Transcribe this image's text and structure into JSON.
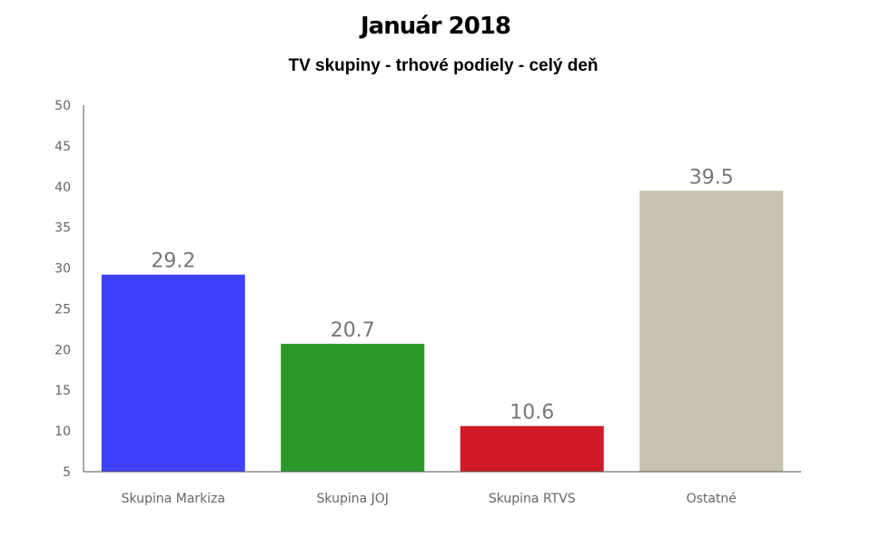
{
  "chart_data": {
    "type": "bar",
    "title": "Január 2018",
    "subtitle": "TV skupiny - trhové podiely - celý deň",
    "categories": [
      "Skupina Markiza",
      "Skupina JOJ",
      "Skupina RTVS",
      "Ostatné"
    ],
    "values": [
      29.2,
      20.7,
      10.6,
      39.5
    ],
    "value_labels": [
      "29.2",
      "20.7",
      "10.6",
      "39.5"
    ],
    "colors": [
      "#4040ff",
      "#2a992a",
      "#d01a28",
      "#c8c3b0"
    ],
    "ylim": [
      5,
      50
    ],
    "yticks": [
      5,
      10,
      15,
      20,
      25,
      30,
      35,
      40,
      45,
      50
    ],
    "xlabel": "",
    "ylabel": "",
    "grid": false,
    "legend": "none"
  }
}
